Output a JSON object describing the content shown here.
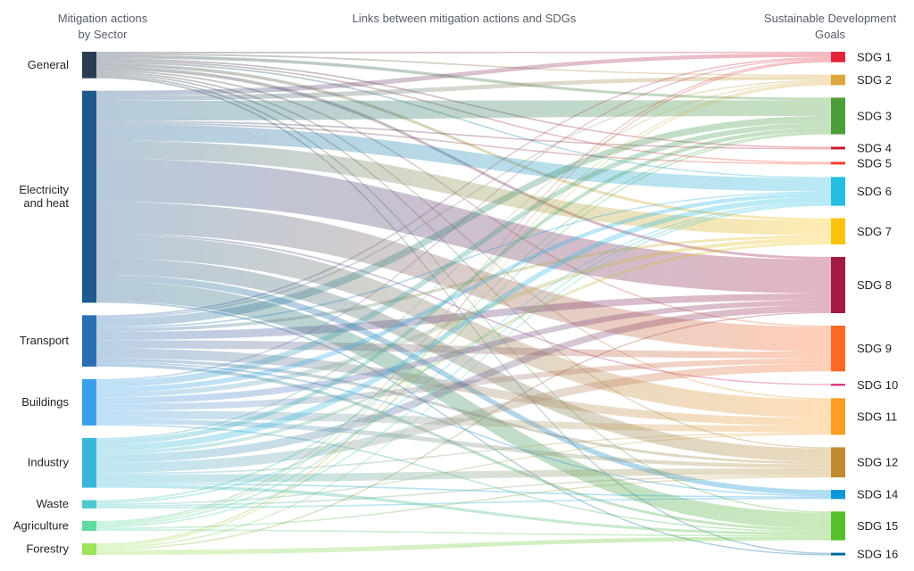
{
  "headers": {
    "left_line1": "Mitigation actions",
    "left_line2": "by Sector",
    "middle": "Links between mitigation actions and SDGs",
    "right_line1": "Sustainable Development",
    "right_line2": "Goals"
  },
  "chart_data": {
    "type": "sankey",
    "sources": [
      {
        "id": "general",
        "lines": [
          "General"
        ],
        "color": "#2a3d52"
      },
      {
        "id": "electricity",
        "lines": [
          "Electricity",
          "and heat"
        ],
        "color": "#1f5a8c"
      },
      {
        "id": "transport",
        "lines": [
          "Transport"
        ],
        "color": "#2a6fb4"
      },
      {
        "id": "buildings",
        "lines": [
          "Buildings"
        ],
        "color": "#3a9ee8"
      },
      {
        "id": "industry",
        "lines": [
          "Industry"
        ],
        "color": "#3ab6da"
      },
      {
        "id": "waste",
        "lines": [
          "Waste"
        ],
        "color": "#4cc8cc"
      },
      {
        "id": "agriculture",
        "lines": [
          "Agriculture"
        ],
        "color": "#5edba0"
      },
      {
        "id": "forestry",
        "lines": [
          "Forestry"
        ],
        "color": "#9be35a"
      }
    ],
    "targets": [
      {
        "id": "sdg1",
        "label": "SDG 1",
        "color": "#e5243b"
      },
      {
        "id": "sdg2",
        "label": "SDG 2",
        "color": "#dda63a"
      },
      {
        "id": "sdg3",
        "label": "SDG 3",
        "color": "#4c9f38"
      },
      {
        "id": "sdg4",
        "label": "SDG 4",
        "color": "#c5192d"
      },
      {
        "id": "sdg5",
        "label": "SDG 5",
        "color": "#ff3a21"
      },
      {
        "id": "sdg6",
        "label": "SDG 6",
        "color": "#26bde2"
      },
      {
        "id": "sdg7",
        "label": "SDG 7",
        "color": "#fcc30b"
      },
      {
        "id": "sdg8",
        "label": "SDG 8",
        "color": "#a21942"
      },
      {
        "id": "sdg9",
        "label": "SDG 9",
        "color": "#fd6925"
      },
      {
        "id": "sdg10",
        "label": "SDG 10",
        "color": "#dd1367"
      },
      {
        "id": "sdg11",
        "label": "SDG 11",
        "color": "#fd9d24"
      },
      {
        "id": "sdg12",
        "label": "SDG 12",
        "color": "#bf8b2e"
      },
      {
        "id": "sdg14",
        "label": "SDG 14",
        "color": "#0a97d9"
      },
      {
        "id": "sdg15",
        "label": "SDG 15",
        "color": "#56c02b"
      },
      {
        "id": "sdg16",
        "label": "SDG 16",
        "color": "#00689d"
      }
    ],
    "links": [
      [
        "general",
        "sdg1",
        1
      ],
      [
        "general",
        "sdg2",
        1
      ],
      [
        "general",
        "sdg3",
        2
      ],
      [
        "general",
        "sdg4",
        1
      ],
      [
        "general",
        "sdg5",
        1
      ],
      [
        "general",
        "sdg6",
        1
      ],
      [
        "general",
        "sdg7",
        2
      ],
      [
        "general",
        "sdg8",
        2
      ],
      [
        "general",
        "sdg9",
        1
      ],
      [
        "general",
        "sdg11",
        1
      ],
      [
        "general",
        "sdg12",
        1
      ],
      [
        "general",
        "sdg15",
        1
      ],
      [
        "general",
        "sdg16",
        1
      ],
      [
        "electricity",
        "sdg1",
        3
      ],
      [
        "electricity",
        "sdg2",
        3
      ],
      [
        "electricity",
        "sdg3",
        12
      ],
      [
        "electricity",
        "sdg4",
        1
      ],
      [
        "electricity",
        "sdg5",
        1
      ],
      [
        "electricity",
        "sdg6",
        10
      ],
      [
        "electricity",
        "sdg7",
        11
      ],
      [
        "electricity",
        "sdg8",
        26
      ],
      [
        "electricity",
        "sdg9",
        19
      ],
      [
        "electricity",
        "sdg10",
        1
      ],
      [
        "electricity",
        "sdg11",
        14
      ],
      [
        "electricity",
        "sdg12",
        10
      ],
      [
        "electricity",
        "sdg14",
        4
      ],
      [
        "electricity",
        "sdg15",
        12
      ],
      [
        "electricity",
        "sdg16",
        1
      ],
      [
        "transport",
        "sdg1",
        1
      ],
      [
        "transport",
        "sdg2",
        1
      ],
      [
        "transport",
        "sdg3",
        5
      ],
      [
        "transport",
        "sdg6",
        1
      ],
      [
        "transport",
        "sdg7",
        2
      ],
      [
        "transport",
        "sdg8",
        5
      ],
      [
        "transport",
        "sdg9",
        5
      ],
      [
        "transport",
        "sdg11",
        6
      ],
      [
        "transport",
        "sdg12",
        2
      ],
      [
        "transport",
        "sdg14",
        1
      ],
      [
        "transport",
        "sdg15",
        2
      ],
      [
        "buildings",
        "sdg1",
        1
      ],
      [
        "buildings",
        "sdg3",
        4
      ],
      [
        "buildings",
        "sdg6",
        3
      ],
      [
        "buildings",
        "sdg7",
        3
      ],
      [
        "buildings",
        "sdg8",
        4
      ],
      [
        "buildings",
        "sdg9",
        4
      ],
      [
        "buildings",
        "sdg11",
        5
      ],
      [
        "buildings",
        "sdg12",
        3
      ],
      [
        "buildings",
        "sdg15",
        1
      ],
      [
        "industry",
        "sdg2",
        1
      ],
      [
        "industry",
        "sdg3",
        3
      ],
      [
        "industry",
        "sdg6",
        4
      ],
      [
        "industry",
        "sdg7",
        2
      ],
      [
        "industry",
        "sdg8",
        5
      ],
      [
        "industry",
        "sdg9",
        6
      ],
      [
        "industry",
        "sdg11",
        1
      ],
      [
        "industry",
        "sdg12",
        5
      ],
      [
        "industry",
        "sdg14",
        1
      ],
      [
        "industry",
        "sdg15",
        2
      ],
      [
        "waste",
        "sdg3",
        1
      ],
      [
        "waste",
        "sdg6",
        1
      ],
      [
        "waste",
        "sdg11",
        1
      ],
      [
        "waste",
        "sdg12",
        1
      ],
      [
        "waste",
        "sdg14",
        1
      ],
      [
        "agriculture",
        "sdg1",
        1
      ],
      [
        "agriculture",
        "sdg2",
        1
      ],
      [
        "agriculture",
        "sdg3",
        1
      ],
      [
        "agriculture",
        "sdg6",
        1
      ],
      [
        "agriculture",
        "sdg12",
        1
      ],
      [
        "agriculture",
        "sdg15",
        1
      ],
      [
        "forestry",
        "sdg1",
        1
      ],
      [
        "forestry",
        "sdg2",
        1
      ],
      [
        "forestry",
        "sdg6",
        1
      ],
      [
        "forestry",
        "sdg8",
        1
      ],
      [
        "forestry",
        "sdg15",
        3
      ]
    ]
  }
}
